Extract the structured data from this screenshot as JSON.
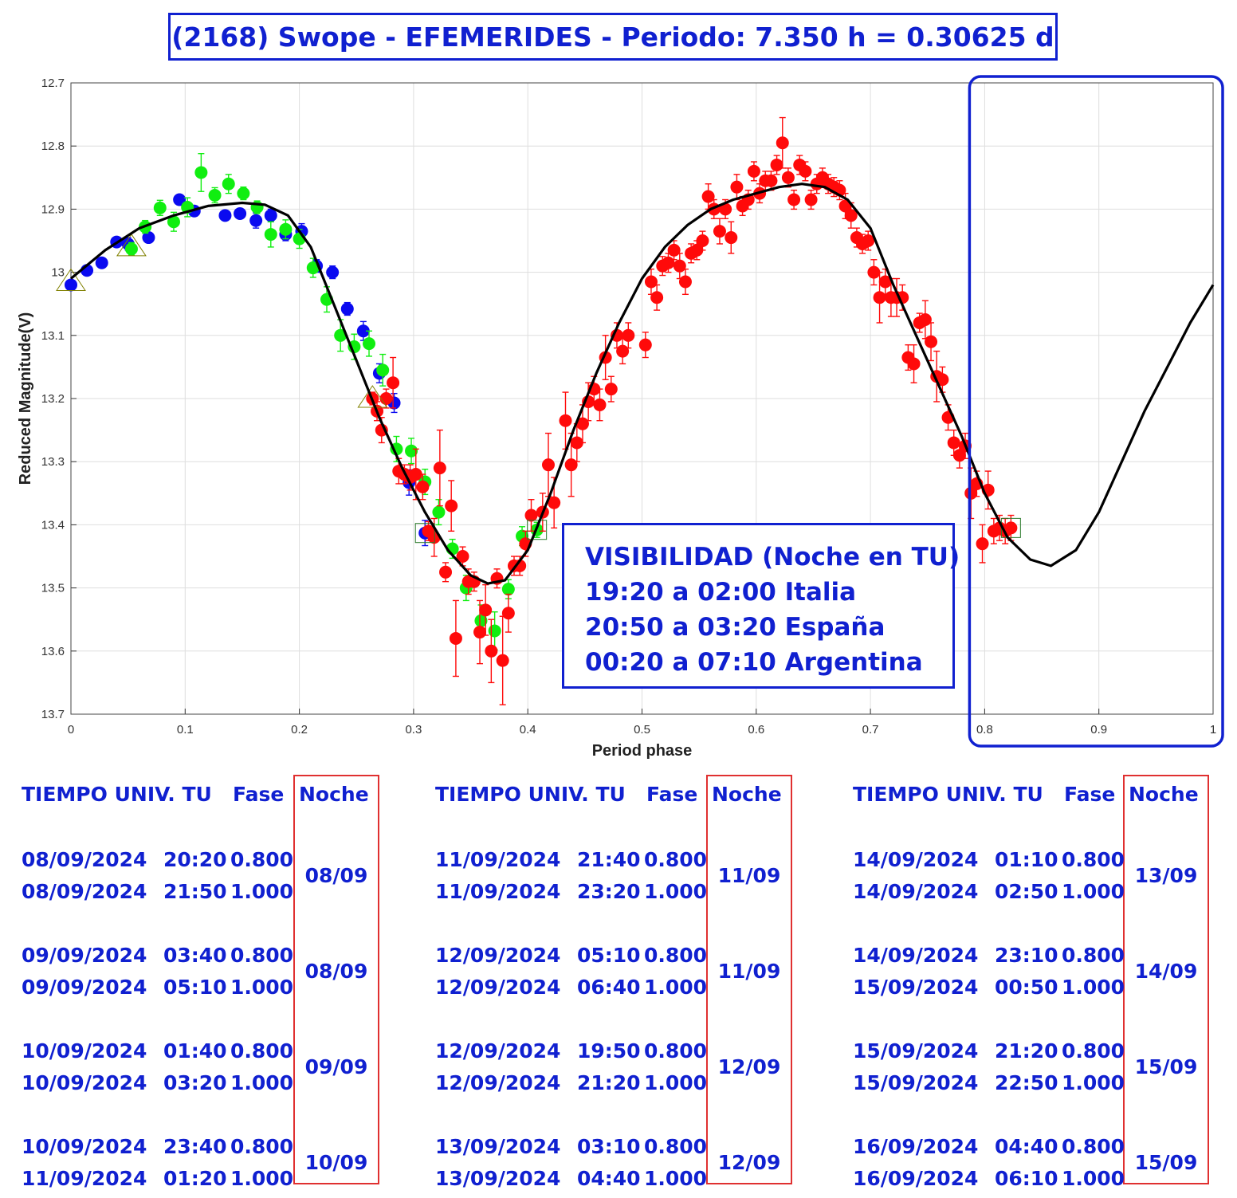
{
  "title": "(2168) Swope - EFEMERIDES - Periodo: 7.350 h = 0.30625 d",
  "visibility": {
    "heading": "VISIBILIDAD (Noche en TU)",
    "lines": [
      "19:20 a 02:00 Italia",
      "20:50 a 03:20 España",
      "00:20 a 07:10 Argentina"
    ]
  },
  "ephemeris": {
    "headers": {
      "time": "TIEMPO UNIV. TU",
      "phase": "Fase",
      "night": "Noche"
    },
    "columns": [
      {
        "groups": [
          {
            "night": "08/09",
            "rows": [
              {
                "date": "08/09/2024",
                "time": "20:20",
                "phase": "0.800"
              },
              {
                "date": "08/09/2024",
                "time": "21:50",
                "phase": "1.000"
              }
            ]
          },
          {
            "night": "08/09",
            "rows": [
              {
                "date": "09/09/2024",
                "time": "03:40",
                "phase": "0.800"
              },
              {
                "date": "09/09/2024",
                "time": "05:10",
                "phase": "1.000"
              }
            ]
          },
          {
            "night": "09/09",
            "rows": [
              {
                "date": "10/09/2024",
                "time": "01:40",
                "phase": "0.800"
              },
              {
                "date": "10/09/2024",
                "time": "03:20",
                "phase": "1.000"
              }
            ]
          },
          {
            "night": "10/09",
            "rows": [
              {
                "date": "10/09/2024",
                "time": "23:40",
                "phase": "0.800"
              },
              {
                "date": "11/09/2024",
                "time": "01:20",
                "phase": "1.000"
              }
            ]
          }
        ]
      },
      {
        "groups": [
          {
            "night": "11/09",
            "rows": [
              {
                "date": "11/09/2024",
                "time": "21:40",
                "phase": "0.800"
              },
              {
                "date": "11/09/2024",
                "time": "23:20",
                "phase": "1.000"
              }
            ]
          },
          {
            "night": "11/09",
            "rows": [
              {
                "date": "12/09/2024",
                "time": "05:10",
                "phase": "0.800"
              },
              {
                "date": "12/09/2024",
                "time": "06:40",
                "phase": "1.000"
              }
            ]
          },
          {
            "night": "12/09",
            "rows": [
              {
                "date": "12/09/2024",
                "time": "19:50",
                "phase": "0.800"
              },
              {
                "date": "12/09/2024",
                "time": "21:20",
                "phase": "1.000"
              }
            ]
          },
          {
            "night": "12/09",
            "rows": [
              {
                "date": "13/09/2024",
                "time": "03:10",
                "phase": "0.800"
              },
              {
                "date": "13/09/2024",
                "time": "04:40",
                "phase": "1.000"
              }
            ]
          }
        ]
      },
      {
        "groups": [
          {
            "night": "13/09",
            "rows": [
              {
                "date": "14/09/2024",
                "time": "01:10",
                "phase": "0.800"
              },
              {
                "date": "14/09/2024",
                "time": "02:50",
                "phase": "1.000"
              }
            ]
          },
          {
            "night": "14/09",
            "rows": [
              {
                "date": "14/09/2024",
                "time": "23:10",
                "phase": "0.800"
              },
              {
                "date": "15/09/2024",
                "time": "00:50",
                "phase": "1.000"
              }
            ]
          },
          {
            "night": "15/09",
            "rows": [
              {
                "date": "15/09/2024",
                "time": "21:20",
                "phase": "0.800"
              },
              {
                "date": "15/09/2024",
                "time": "22:50",
                "phase": "1.000"
              }
            ]
          },
          {
            "night": "15/09",
            "rows": [
              {
                "date": "16/09/2024",
                "time": "04:40",
                "phase": "0.800"
              },
              {
                "date": "16/09/2024",
                "time": "06:10",
                "phase": "1.000"
              }
            ]
          }
        ]
      }
    ]
  },
  "chart_data": {
    "type": "scatter",
    "xlabel": "Period phase",
    "ylabel": "Reduced Magnitude(V)",
    "xlim": [
      0,
      1
    ],
    "ylim": [
      12.7,
      13.7
    ],
    "y_inverted": true,
    "grid": true,
    "x_ticks": [
      "0",
      "0.1",
      "0.2",
      "0.3",
      "0.4",
      "0.5",
      "0.6",
      "0.7",
      "0.8",
      "0.9",
      "1"
    ],
    "y_ticks": [
      "12.7",
      "12.8",
      "12.9",
      "13",
      "13.1",
      "13.2",
      "13.3",
      "13.4",
      "13.5",
      "13.6",
      "13.7"
    ],
    "highlight_x_range": [
      0.8,
      1.0
    ],
    "colors": {
      "blue": "#0a0af0",
      "green": "#10ee10",
      "red": "#ff0a0a",
      "fit": "#000000",
      "highlight": "#1020d0"
    },
    "fit_curve": {
      "x": [
        0,
        0.03,
        0.06,
        0.09,
        0.12,
        0.15,
        0.17,
        0.19,
        0.21,
        0.23,
        0.25,
        0.27,
        0.29,
        0.31,
        0.33,
        0.35,
        0.365,
        0.38,
        0.4,
        0.42,
        0.44,
        0.46,
        0.48,
        0.5,
        0.52,
        0.54,
        0.56,
        0.58,
        0.6,
        0.62,
        0.64,
        0.66,
        0.68,
        0.7,
        0.72,
        0.74,
        0.76,
        0.78,
        0.8,
        0.82,
        0.84,
        0.858,
        0.88,
        0.9,
        0.92,
        0.94,
        0.96,
        0.98,
        1.0
      ],
      "y": [
        13.01,
        12.965,
        12.93,
        12.91,
        12.895,
        12.89,
        12.893,
        12.91,
        12.96,
        13.05,
        13.14,
        13.23,
        13.31,
        13.38,
        13.44,
        13.48,
        13.493,
        13.488,
        13.44,
        13.35,
        13.25,
        13.16,
        13.08,
        13.01,
        12.96,
        12.925,
        12.9,
        12.885,
        12.875,
        12.865,
        12.86,
        12.865,
        12.885,
        12.93,
        13.02,
        13.1,
        13.18,
        13.26,
        13.35,
        13.42,
        13.455,
        13.465,
        13.44,
        13.38,
        13.3,
        13.22,
        13.15,
        13.08,
        13.02
      ]
    },
    "series": [
      {
        "color": "blue",
        "x": [
          0.0,
          0.014,
          0.027,
          0.04,
          0.05,
          0.068,
          0.095,
          0.108,
          0.135,
          0.148,
          0.162,
          0.175,
          0.188,
          0.202,
          0.215,
          0.229,
          0.242,
          0.256,
          0.27,
          0.283,
          0.296,
          0.31
        ],
        "y": [
          13.02,
          12.997,
          12.985,
          12.952,
          12.955,
          12.945,
          12.885,
          12.903,
          12.91,
          12.907,
          12.918,
          12.91,
          12.94,
          12.935,
          12.99,
          13.0,
          13.058,
          13.093,
          13.16,
          13.207,
          13.333,
          13.413
        ],
        "err": [
          0.005,
          0.005,
          0.005,
          0.005,
          0.01,
          0.008,
          0.008,
          0.008,
          0.008,
          0.008,
          0.012,
          0.01,
          0.01,
          0.012,
          0.01,
          0.01,
          0.01,
          0.015,
          0.015,
          0.015,
          0.02,
          0.02
        ]
      },
      {
        "color": "green",
        "x": [
          0.053,
          0.065,
          0.078,
          0.09,
          0.102,
          0.114,
          0.126,
          0.138,
          0.151,
          0.163,
          0.175,
          0.188,
          0.2,
          0.212,
          0.224,
          0.236,
          0.248,
          0.261,
          0.273,
          0.285,
          0.298,
          0.31,
          0.322,
          0.334,
          0.346,
          0.359,
          0.371,
          0.383,
          0.395,
          0.408
        ],
        "y": [
          12.963,
          12.928,
          12.898,
          12.92,
          12.897,
          12.842,
          12.878,
          12.86,
          12.875,
          12.897,
          12.94,
          12.932,
          12.947,
          12.993,
          13.043,
          13.1,
          13.118,
          13.113,
          13.155,
          13.28,
          13.283,
          13.332,
          13.38,
          13.438,
          13.5,
          13.552,
          13.568,
          13.502,
          13.418,
          13.408
        ],
        "err": [
          0.01,
          0.01,
          0.012,
          0.015,
          0.015,
          0.03,
          0.012,
          0.015,
          0.01,
          0.01,
          0.02,
          0.015,
          0.015,
          0.015,
          0.02,
          0.025,
          0.02,
          0.02,
          0.025,
          0.02,
          0.02,
          0.02,
          0.02,
          0.015,
          0.02,
          0.025,
          0.03,
          0.015,
          0.015,
          0.012
        ]
      },
      {
        "color": "red",
        "x": [
          0.264,
          0.268,
          0.272,
          0.276,
          0.282,
          0.287,
          0.292,
          0.297,
          0.302,
          0.308,
          0.313,
          0.318,
          0.323,
          0.328,
          0.333,
          0.337,
          0.343,
          0.348,
          0.353,
          0.358,
          0.363,
          0.368,
          0.373,
          0.378,
          0.383,
          0.388,
          0.393,
          0.398,
          0.403,
          0.413,
          0.418,
          0.423,
          0.433,
          0.438,
          0.443,
          0.448,
          0.453,
          0.458,
          0.463,
          0.468,
          0.473,
          0.478,
          0.483,
          0.488,
          0.503,
          0.508,
          0.513,
          0.518,
          0.523,
          0.528,
          0.533,
          0.538,
          0.543,
          0.548,
          0.553,
          0.558,
          0.563,
          0.568,
          0.573,
          0.578,
          0.583,
          0.588,
          0.593,
          0.598,
          0.603,
          0.608,
          0.613,
          0.618,
          0.623,
          0.628,
          0.633,
          0.638,
          0.643,
          0.648,
          0.653,
          0.658,
          0.663,
          0.668,
          0.673,
          0.678,
          0.683,
          0.688,
          0.693,
          0.698,
          0.703,
          0.708,
          0.713,
          0.718,
          0.723,
          0.728,
          0.733,
          0.738,
          0.743,
          0.748,
          0.753,
          0.758,
          0.763,
          0.768,
          0.773,
          0.778,
          0.783,
          0.788,
          0.793,
          0.798,
          0.803,
          0.808,
          0.813,
          0.818,
          0.823
        ],
        "y": [
          13.2,
          13.22,
          13.25,
          13.2,
          13.175,
          13.315,
          13.32,
          13.325,
          13.32,
          13.34,
          13.41,
          13.42,
          13.31,
          13.475,
          13.37,
          13.58,
          13.45,
          13.49,
          13.49,
          13.57,
          13.535,
          13.6,
          13.485,
          13.615,
          13.54,
          13.465,
          13.465,
          13.43,
          13.385,
          13.38,
          13.305,
          13.365,
          13.235,
          13.305,
          13.27,
          13.24,
          13.205,
          13.185,
          13.21,
          13.135,
          13.185,
          13.1,
          13.125,
          13.1,
          13.115,
          13.015,
          13.04,
          12.99,
          12.985,
          12.965,
          12.99,
          13.015,
          12.97,
          12.965,
          12.95,
          12.88,
          12.9,
          12.935,
          12.9,
          12.945,
          12.865,
          12.895,
          12.885,
          12.84,
          12.875,
          12.855,
          12.855,
          12.83,
          12.795,
          12.85,
          12.885,
          12.83,
          12.84,
          12.885,
          12.86,
          12.85,
          12.86,
          12.865,
          12.87,
          12.895,
          12.91,
          12.945,
          12.955,
          12.95,
          13.0,
          13.04,
          13.015,
          13.04,
          13.04,
          13.04,
          13.135,
          13.145,
          13.08,
          13.075,
          13.11,
          13.165,
          13.17,
          13.23,
          13.27,
          13.29,
          13.275,
          13.35,
          13.335,
          13.43,
          13.345,
          13.41,
          13.405,
          13.41,
          13.405
        ],
        "err": [
          0.01,
          0.015,
          0.02,
          0.015,
          0.04,
          0.02,
          0.015,
          0.02,
          0.04,
          0.02,
          0.015,
          0.03,
          0.06,
          0.015,
          0.04,
          0.06,
          0.015,
          0.02,
          0.015,
          0.05,
          0.04,
          0.05,
          0.015,
          0.07,
          0.03,
          0.015,
          0.015,
          0.02,
          0.025,
          0.03,
          0.05,
          0.04,
          0.045,
          0.05,
          0.03,
          0.03,
          0.03,
          0.02,
          0.025,
          0.035,
          0.02,
          0.02,
          0.02,
          0.02,
          0.02,
          0.02,
          0.02,
          0.015,
          0.015,
          0.015,
          0.02,
          0.02,
          0.015,
          0.015,
          0.015,
          0.02,
          0.015,
          0.02,
          0.015,
          0.025,
          0.02,
          0.015,
          0.015,
          0.015,
          0.015,
          0.015,
          0.015,
          0.015,
          0.04,
          0.015,
          0.015,
          0.015,
          0.015,
          0.015,
          0.015,
          0.015,
          0.015,
          0.015,
          0.015,
          0.02,
          0.02,
          0.015,
          0.015,
          0.015,
          0.02,
          0.04,
          0.02,
          0.03,
          0.03,
          0.02,
          0.02,
          0.03,
          0.015,
          0.03,
          0.03,
          0.04,
          0.02,
          0.02,
          0.02,
          0.02,
          0.02,
          0.04,
          0.02,
          0.03,
          0.03,
          0.02,
          0.02,
          0.02,
          0.02
        ]
      }
    ],
    "triangle_markers": [
      {
        "x": 0.0,
        "y": 13.015
      },
      {
        "x": 0.053,
        "y": 12.96
      },
      {
        "x": 0.264,
        "y": 13.2
      }
    ],
    "square_markers": [
      {
        "x": 0.31,
        "y": 13.413
      },
      {
        "x": 0.408,
        "y": 13.408
      },
      {
        "x": 0.823,
        "y": 13.405
      }
    ]
  }
}
